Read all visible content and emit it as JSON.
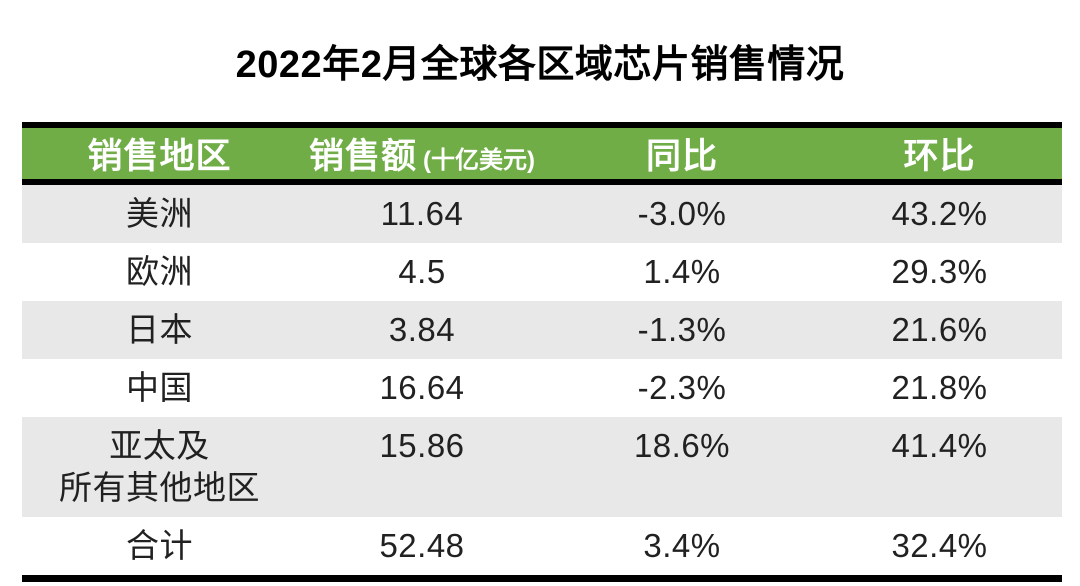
{
  "title": "2022年2月全球各区域芯片销售情况",
  "table": {
    "columns": [
      {
        "label": "销售地区",
        "unit": ""
      },
      {
        "label": "销售额",
        "unit": "(十亿美元)"
      },
      {
        "label": "同比",
        "unit": ""
      },
      {
        "label": "环比",
        "unit": ""
      }
    ],
    "rows": [
      {
        "region": "美洲",
        "sales": "11.64",
        "yoy": "-3.0%",
        "mom": "43.2%"
      },
      {
        "region": "欧洲",
        "sales": "4.5",
        "yoy": "1.4%",
        "mom": "29.3%"
      },
      {
        "region": "日本",
        "sales": "3.84",
        "yoy": "-1.3%",
        "mom": "21.6%"
      },
      {
        "region": "中国",
        "sales": "16.64",
        "yoy": "-2.3%",
        "mom": "21.8%"
      },
      {
        "region": "亚太及\n所有其他地区",
        "sales": "15.86",
        "yoy": "18.6%",
        "mom": "41.4%"
      },
      {
        "region": "合计",
        "sales": "52.48",
        "yoy": "3.4%",
        "mom": "32.4%"
      }
    ]
  },
  "colors": {
    "header_bg": "#70AD47",
    "stripe_bg": "#E8E8E8",
    "rule": "#000000",
    "header_text": "#FFFFFF",
    "body_text": "#212121"
  },
  "chart_data": {
    "type": "table",
    "title": "2022年2月全球各区域芯片销售情况",
    "columns": [
      "销售地区",
      "销售额（十亿美元）",
      "同比",
      "环比"
    ],
    "rows": [
      [
        "美洲",
        11.64,
        "-3.0%",
        "43.2%"
      ],
      [
        "欧洲",
        4.5,
        "1.4%",
        "29.3%"
      ],
      [
        "日本",
        3.84,
        "-1.3%",
        "21.6%"
      ],
      [
        "中国",
        16.64,
        "-2.3%",
        "21.8%"
      ],
      [
        "亚太及所有其他地区",
        15.86,
        "18.6%",
        "41.4%"
      ],
      [
        "合计",
        52.48,
        "3.4%",
        "32.4%"
      ]
    ],
    "layout": {
      "header_style": "green banner, white bold text, black rules above and below",
      "row_striping": "odd rows (1st,3rd,5th) light gray #E8E8E8, others white",
      "bottom_rule": "thick black",
      "alignment": "all cells centered"
    }
  }
}
